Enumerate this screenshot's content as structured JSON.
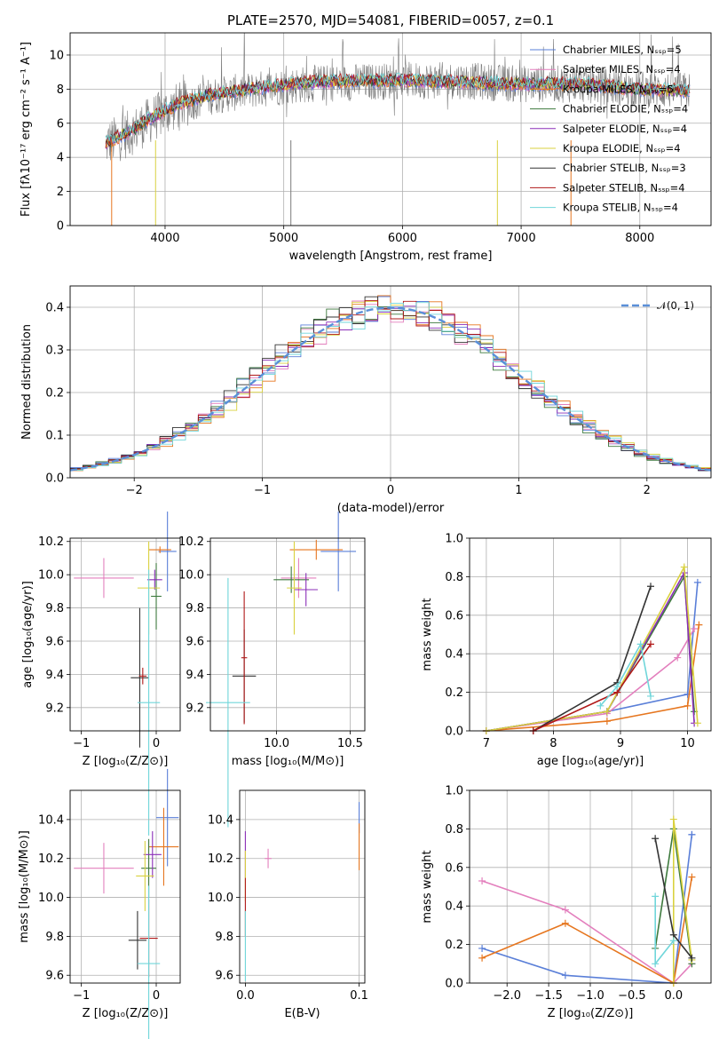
{
  "chart_data": [
    {
      "id": "spectrum",
      "type": "line",
      "title": "PLATE=2570, MJD=54081, FIBERID=0057, z=0.1",
      "xlabel": "wavelength [Angstrom, rest frame]",
      "ylabel": "Flux [fλ10⁻¹⁷ erg cm⁻² s⁻¹ A⁻¹]",
      "xlim": [
        3200,
        8600
      ],
      "ylim": [
        0,
        11.3
      ],
      "xticks": [
        "4000",
        "5000",
        "6000",
        "7000",
        "8000"
      ],
      "yticks": [
        "0",
        "2",
        "4",
        "6",
        "8",
        "10"
      ],
      "legend": {
        "placement": "upper right",
        "entries": [
          {
            "label": "Chabrier MILES, Nₛₛₚ=5",
            "color": "#5a7fd8"
          },
          {
            "label": "Salpeter MILES, Nₛₛₚ=4",
            "color": "#e37fbd"
          },
          {
            "label": "Kroupa MILES, Nₛₛₚ=5",
            "color": "#e6761f"
          },
          {
            "label": "Chabrier ELODIE, Nₛₛₚ=4",
            "color": "#3e7a3e"
          },
          {
            "label": "Salpeter ELODIE, Nₛₛₚ=4",
            "color": "#8b2fb8"
          },
          {
            "label": "Kroupa ELODIE, Nₛₛₚ=4",
            "color": "#d9d13f"
          },
          {
            "label": "Chabrier STELIB, Nₛₛₚ=3",
            "color": "#333333"
          },
          {
            "label": "Salpeter STELIB, Nₛₛₚ=4",
            "color": "#b01818"
          },
          {
            "label": "Kroupa STELIB, Nₛₛₚ=4",
            "color": "#70d6da"
          }
        ]
      },
      "series": [
        {
          "name": "data",
          "color": "#7a7a7a",
          "continuum": [
            [
              3500,
              4.8
            ],
            [
              3700,
              5.4
            ],
            [
              3900,
              6.3
            ],
            [
              4100,
              7.0
            ],
            [
              4400,
              7.6
            ],
            [
              4800,
              8.0
            ],
            [
              5200,
              8.3
            ],
            [
              5600,
              8.4
            ],
            [
              6000,
              8.5
            ],
            [
              6500,
              8.5
            ],
            [
              7000,
              8.3
            ],
            [
              7500,
              8.3
            ],
            [
              8000,
              8.0
            ],
            [
              8400,
              7.9
            ]
          ]
        },
        {
          "name": "model",
          "color": "#70d6da",
          "continuum": [
            [
              3500,
              4.8
            ],
            [
              3700,
              5.5
            ],
            [
              3900,
              6.4
            ],
            [
              4100,
              7.1
            ],
            [
              4400,
              7.7
            ],
            [
              4800,
              8.1
            ],
            [
              5200,
              8.4
            ],
            [
              5600,
              8.5
            ],
            [
              6000,
              8.5
            ],
            [
              6500,
              8.4
            ],
            [
              7000,
              8.3
            ],
            [
              7500,
              8.3
            ],
            [
              8000,
              8.0
            ],
            [
              8400,
              7.9
            ]
          ]
        }
      ]
    },
    {
      "id": "residual-histogram",
      "type": "line",
      "xlabel": "(data-model)/error",
      "ylabel": "Normed distribution",
      "xlim": [
        -2.5,
        2.5
      ],
      "ylim": [
        0,
        0.45
      ],
      "xticks": [
        "−2",
        "−1",
        "0",
        "1",
        "2"
      ],
      "yticks": [
        "0.0",
        "0.1",
        "0.2",
        "0.3",
        "0.4"
      ],
      "legend": {
        "placement": "upper right",
        "entries": [
          {
            "label": "𝒩(0, 1)",
            "color": "#5a8fd8"
          }
        ]
      },
      "gaussian": {
        "mean": 0,
        "sigma": 1
      },
      "colors": [
        "#5a7fd8",
        "#e37fbd",
        "#e6761f",
        "#3e7a3e",
        "#8b2fb8",
        "#d9d13f",
        "#333333",
        "#b01818",
        "#70d6da"
      ]
    },
    {
      "id": "age-vs-Z",
      "type": "scatter",
      "xlabel": "Z [log₁₀(Z/Z⊙)]",
      "ylabel": "age  [log₁₀(age/yr)]",
      "xlim": [
        -1.15,
        0.32
      ],
      "ylim": [
        9.06,
        10.22
      ],
      "xticks": [
        "−1",
        "0"
      ],
      "yticks": [
        "9.2",
        "9.4",
        "9.6",
        "9.8",
        "10.0",
        "10.2"
      ],
      "points": [
        {
          "c": "#5a7fd8",
          "x": 0.15,
          "y": 10.14,
          "xerr": 0.12,
          "yerr": 0.24
        },
        {
          "c": "#e37fbd",
          "x": -0.7,
          "y": 9.98,
          "xerr": 0.4,
          "yerr": 0.12
        },
        {
          "c": "#e6761f",
          "x": 0.05,
          "y": 10.15,
          "xerr": 0.15,
          "yerr": 0.02
        },
        {
          "c": "#3e7a3e",
          "x": 0.0,
          "y": 9.87,
          "xerr": 0.07,
          "yerr": 0.2
        },
        {
          "c": "#8b2fb8",
          "x": -0.02,
          "y": 9.97,
          "xerr": 0.1,
          "yerr": 0.06
        },
        {
          "c": "#d9d13f",
          "x": -0.1,
          "y": 9.92,
          "xerr": 0.15,
          "yerr": 0.28
        },
        {
          "c": "#333333",
          "x": -0.22,
          "y": 9.38,
          "xerr": 0.12,
          "yerr": 0.42
        },
        {
          "c": "#b01818",
          "x": -0.18,
          "y": 9.39,
          "xerr": 0.05,
          "yerr": 0.05
        },
        {
          "c": "#70d6da",
          "x": -0.1,
          "y": 9.23,
          "xerr": 0.15,
          "yerr": 0.8
        }
      ]
    },
    {
      "id": "age-vs-mass",
      "type": "scatter",
      "xlabel": "mass [log₁₀(M/M⊙)]",
      "ylabel": "",
      "xlim": [
        9.55,
        10.6
      ],
      "ylim": [
        9.06,
        10.22
      ],
      "xticks": [
        "10.0",
        "10.5"
      ],
      "yticks": [
        "9.2",
        "9.4",
        "9.6",
        "9.8",
        "10.0",
        "10.2"
      ],
      "points": [
        {
          "c": "#5a7fd8",
          "x": 10.42,
          "y": 10.14,
          "xerr": 0.12,
          "yerr": 0.24
        },
        {
          "c": "#e37fbd",
          "x": 10.15,
          "y": 9.98,
          "xerr": 0.12,
          "yerr": 0.12
        },
        {
          "c": "#e6761f",
          "x": 10.27,
          "y": 10.15,
          "xerr": 0.18,
          "yerr": 0.06
        },
        {
          "c": "#3e7a3e",
          "x": 10.1,
          "y": 9.97,
          "xerr": 0.12,
          "yerr": 0.08
        },
        {
          "c": "#8b2fb8",
          "x": 10.2,
          "y": 9.91,
          "xerr": 0.08,
          "yerr": 0.1
        },
        {
          "c": "#d9d13f",
          "x": 10.12,
          "y": 9.92,
          "xerr": 0.05,
          "yerr": 0.28
        },
        {
          "c": "#333333",
          "x": 9.78,
          "y": 9.39,
          "xerr": 0.08,
          "yerr": 0.28
        },
        {
          "c": "#b01818",
          "x": 9.78,
          "y": 9.5,
          "xerr": 0.02,
          "yerr": 0.4
        },
        {
          "c": "#70d6da",
          "x": 9.67,
          "y": 9.23,
          "xerr": 0.15,
          "yerr": 0.75
        }
      ]
    },
    {
      "id": "mass-weight-vs-age",
      "type": "line",
      "xlabel": "age  [log₁₀(age/yr)]",
      "ylabel": "mass weight",
      "xlim": [
        6.75,
        10.35
      ],
      "ylim": [
        0,
        1
      ],
      "xticks": [
        "7",
        "8",
        "9",
        "10"
      ],
      "yticks": [
        "0.0",
        "0.2",
        "0.4",
        "0.6",
        "0.8",
        "1.0"
      ],
      "series": [
        {
          "c": "#5a7fd8",
          "x": [
            7.0,
            8.8,
            10.0,
            10.15
          ],
          "y": [
            0.0,
            0.1,
            0.19,
            0.77
          ]
        },
        {
          "c": "#e37fbd",
          "x": [
            7.0,
            8.8,
            9.85,
            10.1
          ],
          "y": [
            0.0,
            0.09,
            0.38,
            0.53
          ]
        },
        {
          "c": "#e6761f",
          "x": [
            7.0,
            8.8,
            10.0,
            10.17
          ],
          "y": [
            0.0,
            0.05,
            0.13,
            0.55
          ]
        },
        {
          "c": "#3e7a3e",
          "x": [
            7.0,
            8.8,
            9.95,
            10.1
          ],
          "y": [
            0.0,
            0.1,
            0.8,
            0.1
          ]
        },
        {
          "c": "#8b2fb8",
          "x": [
            7.0,
            8.8,
            9.95,
            10.1
          ],
          "y": [
            0.0,
            0.1,
            0.82,
            0.04
          ]
        },
        {
          "c": "#d9d13f",
          "x": [
            7.0,
            8.8,
            9.95,
            10.15
          ],
          "y": [
            0.0,
            0.1,
            0.85,
            0.04
          ]
        },
        {
          "c": "#333333",
          "x": [
            7.7,
            8.95,
            9.45
          ],
          "y": [
            0.0,
            0.25,
            0.75
          ]
        },
        {
          "c": "#b01818",
          "x": [
            7.7,
            8.95,
            9.45
          ],
          "y": [
            0.0,
            0.2,
            0.45
          ]
        },
        {
          "c": "#70d6da",
          "x": [
            8.7,
            8.95,
            9.3,
            9.45
          ],
          "y": [
            0.13,
            0.23,
            0.45,
            0.18
          ]
        }
      ]
    },
    {
      "id": "mass-vs-Z",
      "type": "scatter",
      "xlabel": "Z [log₁₀(Z/Z⊙)]",
      "ylabel": "mass [log₁₀(M/M⊙)]",
      "xlim": [
        -1.15,
        0.32
      ],
      "ylim": [
        9.56,
        10.55
      ],
      "xticks": [
        "−1",
        "0"
      ],
      "yticks": [
        "9.6",
        "9.8",
        "10.0",
        "10.2",
        "10.4"
      ],
      "points": [
        {
          "c": "#5a7fd8",
          "x": 0.15,
          "y": 10.41,
          "xerr": 0.15,
          "yerr": 0.25
        },
        {
          "c": "#e37fbd",
          "x": -0.7,
          "y": 10.15,
          "xerr": 0.4,
          "yerr": 0.13
        },
        {
          "c": "#e6761f",
          "x": 0.1,
          "y": 10.26,
          "xerr": 0.2,
          "yerr": 0.2
        },
        {
          "c": "#3e7a3e",
          "x": -0.1,
          "y": 10.15,
          "xerr": 0.1,
          "yerr": 0.15
        },
        {
          "c": "#8b2fb8",
          "x": -0.05,
          "y": 10.22,
          "xerr": 0.12,
          "yerr": 0.12
        },
        {
          "c": "#d9d13f",
          "x": -0.15,
          "y": 10.11,
          "xerr": 0.12,
          "yerr": 0.18
        },
        {
          "c": "#333333",
          "x": -0.25,
          "y": 9.78,
          "xerr": 0.12,
          "yerr": 0.15
        },
        {
          "c": "#b01818",
          "x": -0.1,
          "y": 9.79,
          "xerr": 0.12,
          "yerr": 0.2
        },
        {
          "c": "#70d6da",
          "x": -0.1,
          "y": 9.66,
          "xerr": 0.15,
          "yerr": 0.4
        }
      ]
    },
    {
      "id": "mass-vs-EBV",
      "type": "scatter",
      "xlabel": "E(B-V)",
      "ylabel": "",
      "xlim": [
        -0.005,
        0.105
      ],
      "ylim": [
        9.56,
        10.55
      ],
      "xticks": [
        "0.0",
        "0.1"
      ],
      "yticks": [
        "9.6",
        "9.8",
        "10.0",
        "10.2",
        "10.4"
      ],
      "points": [
        {
          "c": "#5a7fd8",
          "x": 0.1,
          "y": 10.41,
          "xerr": 0,
          "yerr": 0.08
        },
        {
          "c": "#e37fbd",
          "x": 0.02,
          "y": 10.2,
          "xerr": 0.003,
          "yerr": 0.05
        },
        {
          "c": "#e6761f",
          "x": 0.1,
          "y": 10.26,
          "xerr": 0,
          "yerr": 0.12
        },
        {
          "c": "#8b2fb8",
          "x": 0,
          "y": 10.22,
          "xerr": 0,
          "yerr": 0.12
        },
        {
          "c": "#d9d13f",
          "x": 0,
          "y": 10.11,
          "xerr": 0,
          "yerr": 0.13
        },
        {
          "c": "#b01818",
          "x": 0,
          "y": 9.95,
          "xerr": 0,
          "yerr": 0.15
        },
        {
          "c": "#70d6da",
          "x": 0,
          "y": 9.75,
          "xerr": 0,
          "yerr": 0.18
        }
      ]
    },
    {
      "id": "mass-weight-vs-Z",
      "type": "line",
      "xlabel": "Z [log₁₀(Z/Z⊙)]",
      "ylabel": "mass weight",
      "xlim": [
        -2.45,
        0.45
      ],
      "ylim": [
        0,
        1
      ],
      "xticks": [
        "−2.0",
        "−1.5",
        "−1.0",
        "−0.5",
        "0.0"
      ],
      "yticks": [
        "0.0",
        "0.2",
        "0.4",
        "0.6",
        "0.8",
        "1.0"
      ],
      "series": [
        {
          "c": "#5a7fd8",
          "x": [
            -2.3,
            -1.3,
            0.0,
            0.22,
            0.22
          ],
          "y": [
            0.18,
            0.04,
            0.0,
            0.77,
            0.77
          ]
        },
        {
          "c": "#e37fbd",
          "x": [
            -2.3,
            -1.3,
            0.0,
            0.22
          ],
          "y": [
            0.53,
            0.38,
            0.0,
            0.1
          ]
        },
        {
          "c": "#e6761f",
          "x": [
            -2.3,
            -1.3,
            0.0,
            0.22
          ],
          "y": [
            0.13,
            0.31,
            0.0,
            0.55
          ]
        },
        {
          "c": "#3e7a3e",
          "x": [
            -0.22,
            0.0,
            0.22
          ],
          "y": [
            0.18,
            0.8,
            0.1
          ]
        },
        {
          "c": "#d9d13f",
          "x": [
            0.0,
            0.0,
            0.22
          ],
          "y": [
            0.0,
            0.85,
            0.12
          ]
        },
        {
          "c": "#333333",
          "x": [
            -0.22,
            0.0,
            0.22
          ],
          "y": [
            0.75,
            0.25,
            0.13
          ]
        },
        {
          "c": "#70d6da",
          "x": [
            -0.22,
            -0.22,
            0.0
          ],
          "y": [
            0.45,
            0.1,
            0.22
          ]
        }
      ]
    }
  ]
}
